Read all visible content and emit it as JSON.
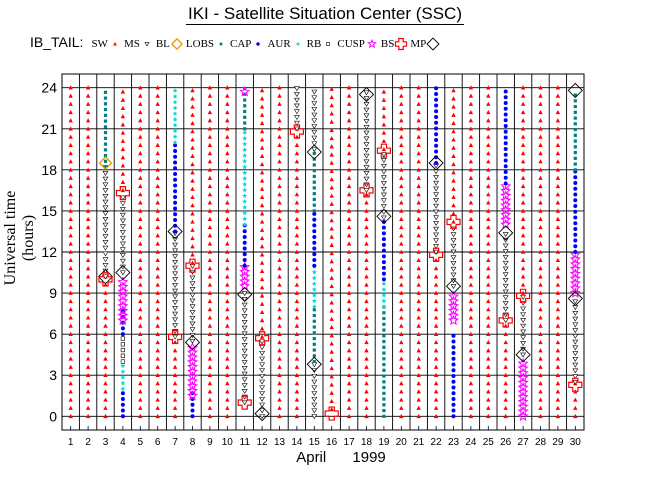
{
  "chart_data": {
    "type": "scatter",
    "title": "IKI - Satellite Situation Center (SSC)",
    "legend_prefix": "IB_TAIL:",
    "legend": [
      {
        "label": "SW",
        "key": "SW",
        "marker": "tri-up",
        "color": "#ff0000"
      },
      {
        "label": "MS",
        "key": "MS",
        "marker": "tri-down",
        "color": "#000000"
      },
      {
        "label": "BL",
        "key": "BL",
        "marker": "diamond",
        "color": "#e8a000"
      },
      {
        "label": "LOBS",
        "key": "LOBS",
        "marker": "square-small",
        "color": "#008080"
      },
      {
        "label": "CAP",
        "key": "CAP",
        "marker": "dot",
        "color": "#0000ff"
      },
      {
        "label": "AUR",
        "key": "AUR",
        "marker": "star-small",
        "color": "#00e0e0"
      },
      {
        "label": "RB",
        "key": "RB",
        "marker": "square-open",
        "color": "#000000"
      },
      {
        "label": "CUSP",
        "key": "CUSP",
        "marker": "star",
        "color": "#ff00ff"
      },
      {
        "label": "BS",
        "key": "BS",
        "marker": "cross",
        "color": "#ff0000"
      },
      {
        "label": "MP",
        "key": "MP",
        "marker": "diamond-big",
        "color": "#000000"
      }
    ],
    "xlabel_month": "April",
    "xlabel_year": "1999",
    "ylabel": "Universal time (hours)",
    "x_ticks": [
      "1",
      "2",
      "3",
      "4",
      "5",
      "6",
      "7",
      "8",
      "9",
      "10",
      "11",
      "12",
      "13",
      "14",
      "15",
      "16",
      "17",
      "18",
      "19",
      "20",
      "21",
      "22",
      "23",
      "24",
      "25",
      "26",
      "27",
      "28",
      "29",
      "30"
    ],
    "y_ticks": [
      "0",
      "3",
      "6",
      "9",
      "12",
      "15",
      "18",
      "21",
      "24"
    ],
    "xlim": [
      1,
      31
    ],
    "ylim": [
      -1,
      25
    ],
    "days": [
      {
        "day": 1,
        "segments": [
          [
            "SW",
            0,
            24
          ]
        ],
        "events": []
      },
      {
        "day": 2,
        "segments": [
          [
            "SW",
            0,
            24
          ]
        ],
        "events": []
      },
      {
        "day": 3,
        "segments": [
          [
            "SW",
            0,
            10.2
          ],
          [
            "MS",
            10.2,
            18.2
          ],
          [
            "LOBS",
            18.2,
            24
          ]
        ],
        "events": [
          [
            "MP",
            10.2
          ],
          [
            "BL",
            18.5
          ],
          [
            "BS",
            10.0
          ]
        ]
      },
      {
        "day": 4,
        "segments": [
          [
            "CAP",
            0,
            2
          ],
          [
            "AUR",
            2,
            4
          ],
          [
            "RB",
            4,
            6
          ],
          [
            "CAP",
            6,
            8
          ],
          [
            "CUSP",
            7,
            10
          ],
          [
            "MS",
            10.5,
            16
          ],
          [
            "SW",
            16.5,
            24
          ]
        ],
        "events": [
          [
            "BS",
            16.3
          ],
          [
            "MP",
            10.5
          ]
        ]
      },
      {
        "day": 5,
        "segments": [
          [
            "SW",
            0,
            24
          ]
        ],
        "events": []
      },
      {
        "day": 6,
        "segments": [
          [
            "SW",
            0,
            24
          ]
        ],
        "events": []
      },
      {
        "day": 7,
        "segments": [
          [
            "SW",
            0,
            5.8
          ],
          [
            "MS",
            5.8,
            13.5
          ],
          [
            "CAP",
            13.5,
            20
          ],
          [
            "AUR",
            20,
            24
          ]
        ],
        "events": [
          [
            "BS",
            5.8
          ],
          [
            "MP",
            13.5
          ]
        ]
      },
      {
        "day": 8,
        "segments": [
          [
            "CAP",
            0,
            2
          ],
          [
            "CUSP",
            1.5,
            5
          ],
          [
            "MS",
            5.5,
            11
          ],
          [
            "SW",
            11.2,
            24
          ]
        ],
        "events": [
          [
            "MP",
            5.4
          ],
          [
            "BS",
            11.0
          ]
        ]
      },
      {
        "day": 9,
        "segments": [
          [
            "SW",
            0,
            24
          ]
        ],
        "events": []
      },
      {
        "day": 10,
        "segments": [
          [
            "SW",
            0,
            24
          ]
        ],
        "events": []
      },
      {
        "day": 11,
        "segments": [
          [
            "MS",
            1,
            9
          ],
          [
            "CUSP",
            9.5,
            11
          ],
          [
            "CAP",
            11,
            14
          ],
          [
            "AUR",
            14,
            21
          ],
          [
            "LOBS",
            21,
            24
          ]
        ],
        "events": [
          [
            "BS",
            1.0
          ],
          [
            "MP",
            8.9
          ],
          [
            "CUSP",
            23.7
          ]
        ]
      },
      {
        "day": 12,
        "segments": [
          [
            "MS",
            0,
            5.5
          ],
          [
            "SW",
            5.8,
            24
          ]
        ],
        "events": [
          [
            "MP",
            0.2
          ],
          [
            "BS",
            5.7
          ]
        ]
      },
      {
        "day": 13,
        "segments": [
          [
            "SW",
            0,
            24
          ]
        ],
        "events": []
      },
      {
        "day": 14,
        "segments": [
          [
            "SW",
            0,
            21
          ],
          [
            "MS",
            21,
            24
          ]
        ],
        "events": [
          [
            "BS",
            20.8
          ]
        ]
      },
      {
        "day": 15,
        "segments": [
          [
            "MS",
            0,
            3.8
          ],
          [
            "LOBS",
            4,
            8
          ],
          [
            "AUR",
            8,
            11
          ],
          [
            "CAP",
            11,
            15
          ],
          [
            "LOBS",
            15,
            19.2
          ],
          [
            "MS",
            19.5,
            24
          ]
        ],
        "events": [
          [
            "MP",
            3.8
          ],
          [
            "MP",
            19.3
          ]
        ]
      },
      {
        "day": 16,
        "segments": [
          [
            "SW",
            0.5,
            24
          ]
        ],
        "events": [
          [
            "BS",
            0.2
          ]
        ]
      },
      {
        "day": 17,
        "segments": [
          [
            "SW",
            0,
            24
          ]
        ],
        "events": []
      },
      {
        "day": 18,
        "segments": [
          [
            "SW",
            0,
            16.5
          ],
          [
            "MS",
            16.5,
            24
          ]
        ],
        "events": [
          [
            "BS",
            16.5
          ],
          [
            "MP",
            23.5
          ]
        ]
      },
      {
        "day": 19,
        "segments": [
          [
            "LOBS",
            0,
            8
          ],
          [
            "AUR",
            8,
            10
          ],
          [
            "CAP",
            10,
            14.5
          ],
          [
            "MS",
            14.5,
            19.2
          ],
          [
            "SW",
            19.5,
            24
          ]
        ],
        "events": [
          [
            "MP",
            14.6
          ],
          [
            "BS",
            19.4
          ]
        ]
      },
      {
        "day": 20,
        "segments": [
          [
            "SW",
            0,
            24
          ]
        ],
        "events": []
      },
      {
        "day": 21,
        "segments": [
          [
            "SW",
            0,
            24
          ]
        ],
        "events": []
      },
      {
        "day": 22,
        "segments": [
          [
            "SW",
            0,
            12
          ],
          [
            "MS",
            12,
            18.5
          ],
          [
            "CAP",
            18.5,
            24
          ]
        ],
        "events": [
          [
            "BS",
            11.8
          ],
          [
            "MP",
            18.5
          ]
        ]
      },
      {
        "day": 23,
        "segments": [
          [
            "CAP",
            0,
            6
          ],
          [
            "CUSP",
            7,
            9
          ],
          [
            "MS",
            9.5,
            14
          ],
          [
            "SW",
            14.2,
            24
          ]
        ],
        "events": [
          [
            "MP",
            9.5
          ],
          [
            "BS",
            14.2
          ]
        ]
      },
      {
        "day": 24,
        "segments": [
          [
            "SW",
            0,
            24
          ]
        ],
        "events": []
      },
      {
        "day": 25,
        "segments": [
          [
            "SW",
            0,
            24
          ]
        ],
        "events": []
      },
      {
        "day": 26,
        "segments": [
          [
            "SW",
            0,
            7
          ],
          [
            "MS",
            7,
            13.5
          ],
          [
            "CUSP",
            14,
            17
          ],
          [
            "CAP",
            17,
            24
          ]
        ],
        "events": [
          [
            "BS",
            7.0
          ],
          [
            "MP",
            13.4
          ]
        ]
      },
      {
        "day": 27,
        "segments": [
          [
            "CUSP",
            0,
            4
          ],
          [
            "MS",
            4.5,
            9
          ],
          [
            "SW",
            9,
            24
          ]
        ],
        "events": [
          [
            "MP",
            4.5
          ],
          [
            "BS",
            8.8
          ]
        ]
      },
      {
        "day": 28,
        "segments": [
          [
            "SW",
            0,
            24
          ]
        ],
        "events": []
      },
      {
        "day": 29,
        "segments": [
          [
            "SW",
            0,
            24
          ]
        ],
        "events": []
      },
      {
        "day": 30,
        "segments": [
          [
            "SW",
            0,
            2.5
          ],
          [
            "MS",
            2.5,
            8.5
          ],
          [
            "CUSP",
            9,
            12
          ],
          [
            "CAP",
            12,
            18
          ],
          [
            "LOBS",
            18,
            23.5
          ]
        ],
        "events": [
          [
            "BS",
            2.3
          ],
          [
            "MP",
            8.6
          ],
          [
            "MP",
            23.8
          ]
        ]
      }
    ]
  }
}
